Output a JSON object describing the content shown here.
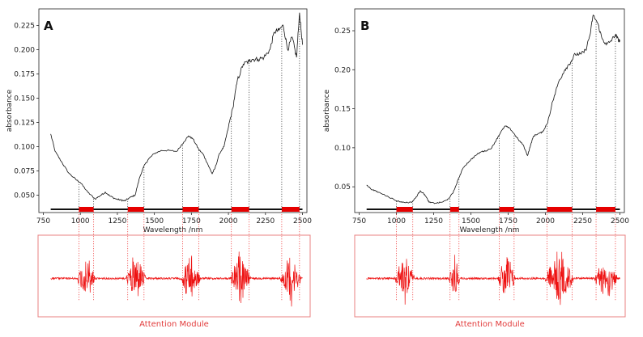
{
  "chart_data": [
    {
      "type": "line",
      "panel_label": "A",
      "xlabel": "Wavelength /nm",
      "ylabel": "absorbance",
      "x_ticks": [
        750,
        1000,
        1250,
        1500,
        1750,
        2000,
        2250,
        2500
      ],
      "y_ticks": [
        0.05,
        0.075,
        0.1,
        0.125,
        0.15,
        0.175,
        0.2,
        0.225
      ],
      "y_tick_labels": [
        "0.050",
        "0.075",
        "0.100",
        "0.125",
        "0.150",
        "0.175",
        "0.200",
        "0.225"
      ],
      "xlim": [
        720,
        2530
      ],
      "ylim": [
        0.032,
        0.242
      ],
      "series": [
        {
          "x": [
            800,
            830,
            870,
            920,
            970,
            1000,
            1050,
            1100,
            1140,
            1170,
            1200,
            1240,
            1270,
            1300,
            1330,
            1370,
            1400,
            1430,
            1460,
            1500,
            1550,
            1600,
            1650,
            1700,
            1730,
            1760,
            1800,
            1830,
            1860,
            1890,
            1910,
            1940,
            1970,
            2000,
            2030,
            2060,
            2100,
            2140,
            2160,
            2200,
            2240,
            2280,
            2310,
            2340,
            2370,
            2400,
            2430,
            2460,
            2480,
            2500
          ],
          "y": [
            0.113,
            0.095,
            0.085,
            0.073,
            0.066,
            0.063,
            0.053,
            0.046,
            0.05,
            0.053,
            0.049,
            0.046,
            0.045,
            0.044,
            0.047,
            0.05,
            0.068,
            0.08,
            0.087,
            0.093,
            0.096,
            0.096,
            0.095,
            0.105,
            0.111,
            0.108,
            0.097,
            0.092,
            0.082,
            0.072,
            0.078,
            0.093,
            0.1,
            0.12,
            0.14,
            0.168,
            0.185,
            0.188,
            0.19,
            0.19,
            0.192,
            0.2,
            0.218,
            0.22,
            0.225,
            0.2,
            0.213,
            0.192,
            0.238,
            0.205
          ]
        }
      ],
      "attention_bands": [
        [
          990,
          1090
        ],
        [
          1320,
          1430
        ],
        [
          1690,
          1800
        ],
        [
          2020,
          2140
        ],
        [
          2360,
          2480
        ]
      ],
      "attention_module_label": "Attention Module"
    },
    {
      "type": "line",
      "panel_label": "B",
      "xlabel": "Wavelength /nm",
      "ylabel": "absorbance",
      "x_ticks": [
        750,
        1000,
        1250,
        1500,
        1750,
        2000,
        2250,
        2500
      ],
      "y_ticks": [
        0.05,
        0.1,
        0.15,
        0.2,
        0.25
      ],
      "y_tick_labels": [
        "0.05",
        "0.10",
        "0.15",
        "0.20",
        "0.25"
      ],
      "xlim": [
        720,
        2530
      ],
      "ylim": [
        0.017,
        0.278
      ],
      "series": [
        {
          "x": [
            800,
            840,
            880,
            940,
            1000,
            1050,
            1100,
            1130,
            1160,
            1190,
            1220,
            1260,
            1300,
            1340,
            1380,
            1420,
            1450,
            1490,
            1530,
            1570,
            1600,
            1640,
            1670,
            1700,
            1730,
            1760,
            1790,
            1820,
            1850,
            1880,
            1900,
            1920,
            1950,
            1980,
            2010,
            2050,
            2090,
            2130,
            2170,
            2200,
            2240,
            2270,
            2300,
            2320,
            2350,
            2380,
            2410,
            2440,
            2470,
            2490,
            2500
          ],
          "y": [
            0.052,
            0.046,
            0.043,
            0.038,
            0.032,
            0.03,
            0.03,
            0.036,
            0.045,
            0.04,
            0.03,
            0.029,
            0.03,
            0.033,
            0.042,
            0.062,
            0.075,
            0.083,
            0.09,
            0.095,
            0.096,
            0.1,
            0.11,
            0.12,
            0.128,
            0.125,
            0.118,
            0.11,
            0.104,
            0.09,
            0.103,
            0.115,
            0.118,
            0.12,
            0.13,
            0.16,
            0.185,
            0.2,
            0.21,
            0.22,
            0.22,
            0.225,
            0.245,
            0.27,
            0.26,
            0.24,
            0.232,
            0.237,
            0.245,
            0.238,
            0.237
          ]
        }
      ],
      "attention_bands": [
        [
          1000,
          1110
        ],
        [
          1360,
          1420
        ],
        [
          1690,
          1790
        ],
        [
          2010,
          2180
        ],
        [
          2340,
          2470
        ]
      ],
      "attention_module_label": "Attention Module"
    }
  ]
}
